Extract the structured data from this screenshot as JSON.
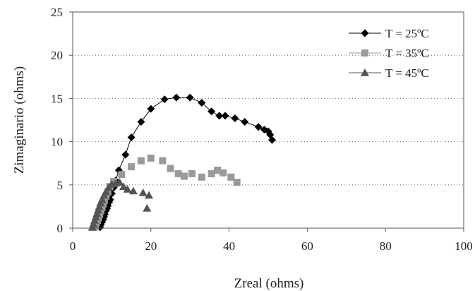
{
  "chart_data": {
    "type": "scatter",
    "title": "",
    "xlabel": "Zreal (ohms)",
    "ylabel": "Zimaginario (ohms)",
    "xlim": [
      0,
      100
    ],
    "ylim": [
      0,
      25
    ],
    "xticks": [
      0,
      20,
      40,
      60,
      80,
      100
    ],
    "yticks": [
      0,
      5,
      10,
      15,
      20,
      25
    ],
    "xtick_labels": [
      "0",
      "20",
      "40",
      "60",
      "80",
      "100"
    ],
    "ytick_labels": [
      "0",
      "5",
      "10",
      "15",
      "20",
      "25"
    ],
    "grid": "horizontal dotted",
    "legend_position": "top-right",
    "series": [
      {
        "name": "T = 25ºC",
        "marker": "diamond",
        "line": true,
        "color": "#000000",
        "x": [
          7.0,
          7.2,
          7.5,
          7.8,
          8.0,
          8.2,
          8.5,
          8.8,
          9.0,
          9.3,
          9.6,
          10.0,
          10.5,
          11.0,
          11.8,
          13.5,
          15.0,
          17.5,
          20.0,
          23.5,
          26.5,
          30.0,
          33.0,
          35.5,
          37.5,
          39.0,
          41.5,
          44.0,
          47.5,
          49.0,
          50.0,
          50.5,
          51.0
        ],
        "y": [
          0.1,
          0.4,
          0.7,
          1.0,
          1.3,
          1.6,
          2.0,
          2.3,
          2.6,
          3.0,
          3.3,
          4.0,
          4.7,
          5.5,
          6.7,
          8.5,
          10.5,
          12.3,
          13.8,
          14.9,
          15.1,
          15.1,
          14.5,
          13.5,
          13.0,
          13.0,
          12.7,
          12.3,
          11.7,
          11.4,
          11.2,
          10.8,
          10.2
        ]
      },
      {
        "name": "T = 35ºC",
        "marker": "square",
        "line": false,
        "color": "#9a9a9a",
        "x": [
          5.5,
          5.8,
          6.0,
          6.3,
          6.6,
          6.9,
          7.2,
          7.5,
          7.8,
          8.1,
          8.5,
          9.0,
          9.5,
          10.5,
          12.5,
          15.0,
          17.5,
          20.0,
          23.0,
          25.0,
          27.0,
          28.5,
          30.5,
          33.0,
          35.5,
          37.0,
          38.5,
          40.5,
          42.0
        ],
        "y": [
          0.1,
          0.3,
          0.6,
          0.9,
          1.2,
          1.6,
          2.0,
          2.4,
          2.8,
          3.2,
          3.7,
          4.2,
          4.8,
          5.4,
          6.2,
          7.1,
          7.8,
          8.1,
          7.8,
          6.9,
          6.3,
          6.0,
          6.3,
          5.9,
          6.3,
          6.7,
          6.4,
          5.9,
          5.3
        ]
      },
      {
        "name": "T = 45ºC",
        "marker": "triangle",
        "line": false,
        "color": "#555555",
        "x": [
          5.0,
          5.3,
          5.6,
          5.9,
          6.2,
          6.5,
          6.8,
          7.1,
          7.5,
          8.0,
          8.5,
          9.2,
          10.0,
          11.0,
          12.0,
          13.0,
          14.0,
          15.5,
          18.0,
          19.0,
          19.5
        ],
        "y": [
          0.1,
          0.5,
          0.9,
          1.3,
          1.7,
          2.1,
          2.5,
          2.9,
          3.3,
          3.8,
          4.2,
          4.7,
          5.1,
          5.2,
          5.3,
          4.8,
          4.5,
          4.3,
          4.1,
          2.3,
          3.8
        ]
      }
    ]
  }
}
